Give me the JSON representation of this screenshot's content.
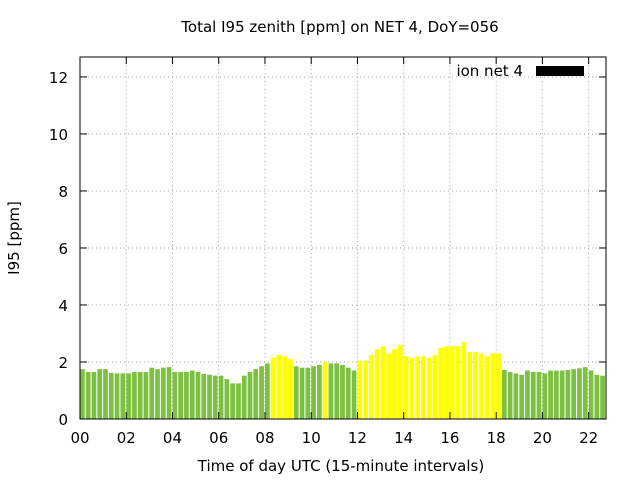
{
  "chart_data": {
    "type": "bar",
    "title": "Total I95 zenith [ppm] on NET 4, DoY=056",
    "xlabel": "Time of day UTC (15-minute intervals)",
    "ylabel": "I95 [ppm]",
    "xlim": [
      0,
      22.75
    ],
    "ylim": [
      0,
      12.7
    ],
    "x_ticks": [
      "00",
      "02",
      "04",
      "06",
      "08",
      "10",
      "12",
      "14",
      "16",
      "18",
      "20",
      "22"
    ],
    "y_ticks": [
      "0",
      "2",
      "4",
      "6",
      "8",
      "10",
      "12"
    ],
    "grid": true,
    "legend": {
      "position": "top-right",
      "entries": [
        {
          "label": "ion net 4",
          "color": "#000000"
        }
      ]
    },
    "colors": {
      "green": "#7dc142",
      "yellow": "#ffff00"
    },
    "bar_interval_hours": 0.25,
    "series": [
      {
        "name": "ion net 4",
        "x_start": 0.0,
        "values": [
          1.75,
          1.65,
          1.65,
          1.75,
          1.75,
          1.62,
          1.6,
          1.6,
          1.6,
          1.65,
          1.65,
          1.65,
          1.8,
          1.75,
          1.8,
          1.82,
          1.65,
          1.65,
          1.65,
          1.7,
          1.65,
          1.58,
          1.55,
          1.52,
          1.52,
          1.4,
          1.25,
          1.25,
          1.52,
          1.65,
          1.75,
          1.85,
          1.95,
          2.15,
          2.25,
          2.2,
          2.1,
          1.85,
          1.8,
          1.8,
          1.85,
          1.9,
          2.0,
          1.95,
          1.95,
          1.9,
          1.8,
          1.7,
          2.05,
          2.05,
          2.25,
          2.45,
          2.55,
          2.3,
          2.45,
          2.6,
          2.2,
          2.15,
          2.2,
          2.2,
          2.15,
          2.25,
          2.5,
          2.55,
          2.55,
          2.55,
          2.7,
          2.35,
          2.35,
          2.3,
          2.2,
          2.3,
          2.3,
          1.72,
          1.65,
          1.6,
          1.55,
          1.7,
          1.65,
          1.65,
          1.6,
          1.7,
          1.7,
          1.7,
          1.72,
          1.75,
          1.78,
          1.82,
          1.7,
          1.55,
          1.52
        ],
        "colors": [
          "g",
          "g",
          "g",
          "g",
          "g",
          "g",
          "g",
          "g",
          "g",
          "g",
          "g",
          "g",
          "g",
          "g",
          "g",
          "g",
          "g",
          "g",
          "g",
          "g",
          "g",
          "g",
          "g",
          "g",
          "g",
          "g",
          "g",
          "g",
          "g",
          "g",
          "g",
          "g",
          "g",
          "y",
          "y",
          "y",
          "y",
          "g",
          "g",
          "g",
          "g",
          "g",
          "y",
          "g",
          "g",
          "g",
          "g",
          "g",
          "y",
          "y",
          "y",
          "y",
          "y",
          "y",
          "y",
          "y",
          "y",
          "y",
          "y",
          "y",
          "y",
          "y",
          "y",
          "y",
          "y",
          "y",
          "y",
          "y",
          "y",
          "y",
          "y",
          "y",
          "y",
          "g",
          "g",
          "g",
          "g",
          "g",
          "g",
          "g",
          "g",
          "g",
          "g",
          "g",
          "g",
          "g",
          "g",
          "g",
          "g",
          "g",
          "g"
        ]
      }
    ]
  }
}
